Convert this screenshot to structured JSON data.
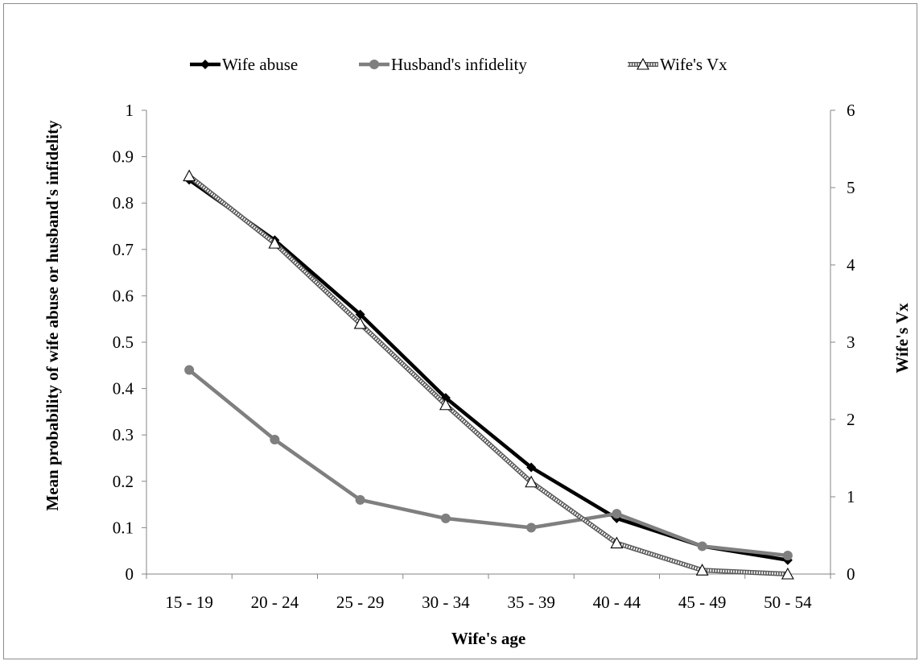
{
  "chart_data": {
    "type": "line",
    "title": "",
    "xlabel": "Wife's age",
    "ylabel": "Mean probability  of wife abuse or husband's  infidelity",
    "y2label": "Wife's Vx",
    "categories": [
      "15 - 19",
      "20 - 24",
      "25 - 29",
      "30 - 34",
      "35 - 39",
      "40 - 44",
      "45 - 49",
      "50 - 54"
    ],
    "ylim": [
      0,
      1
    ],
    "yticks": [
      "0",
      "0.1",
      "0.2",
      "0.3",
      "0.4",
      "0.5",
      "0.6",
      "0.7",
      "0.8",
      "0.9",
      "1"
    ],
    "y2lim": [
      0,
      6
    ],
    "y2ticks": [
      "0",
      "1",
      "2",
      "3",
      "4",
      "5",
      "6"
    ],
    "legend_position": "top-center",
    "grid": false,
    "series": [
      {
        "name": "Wife abuse",
        "axis": "left",
        "color": "#000000",
        "marker": "diamond",
        "values": [
          0.85,
          0.72,
          0.56,
          0.38,
          0.23,
          0.12,
          0.06,
          0.03
        ]
      },
      {
        "name": "Husband's infidelity",
        "axis": "left",
        "color": "#7f7f7f",
        "marker": "circle",
        "values": [
          0.44,
          0.29,
          0.16,
          0.12,
          0.1,
          0.13,
          0.06,
          0.04
        ]
      },
      {
        "name": "Wife's Vx",
        "axis": "right",
        "color": "#595959",
        "marker": "triangle-open",
        "values": [
          5.15,
          4.28,
          3.24,
          2.19,
          1.19,
          0.4,
          0.05,
          0.0
        ]
      }
    ]
  }
}
